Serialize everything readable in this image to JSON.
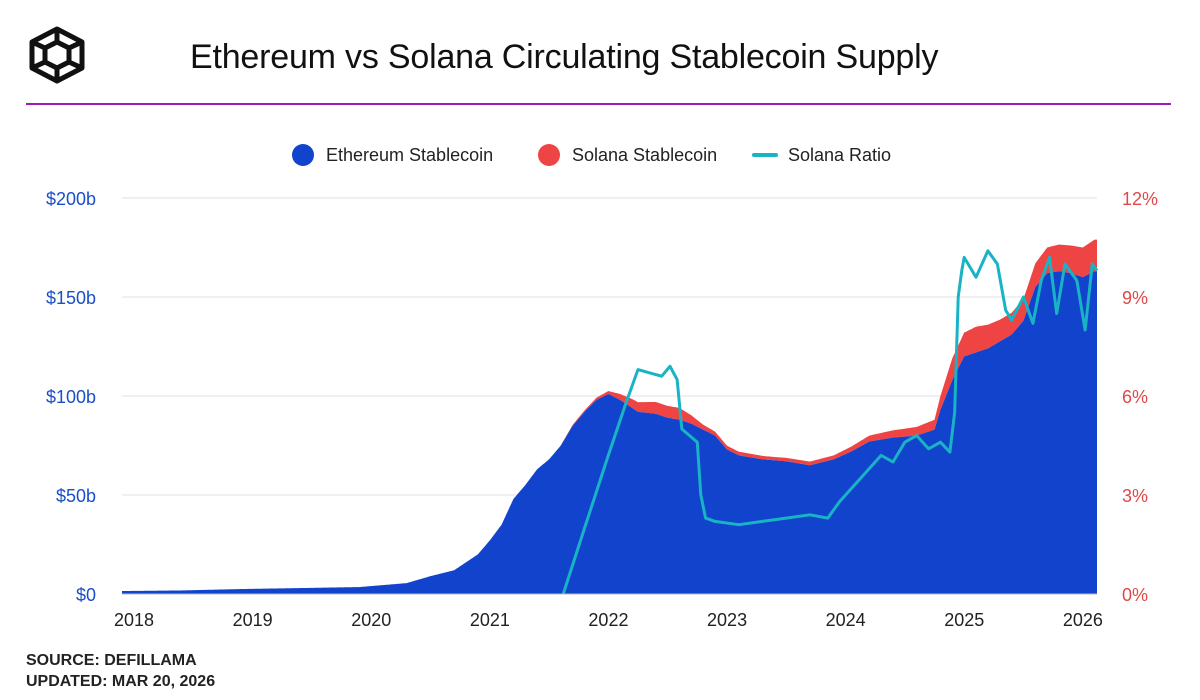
{
  "header": {
    "title": "Ethereum vs Solana Circulating Stablecoin Supply",
    "logo_icon": "cube-outline-icon"
  },
  "footer": {
    "source": "SOURCE: DEFILLAMA",
    "updated": "UPDATED: MAR 20, 2026"
  },
  "colors": {
    "ethereum": "#1143cc",
    "solana": "#ef4444",
    "ratio": "#19b3c6",
    "left_axis": "#1a4fc8",
    "right_axis": "#e04848",
    "divider": "#9b1bb4",
    "grid": "#e6e6e6"
  },
  "chart_data": {
    "type": "area",
    "title": "Ethereum vs Solana Circulating Stablecoin Supply",
    "x_ticks": [
      "2018",
      "2019",
      "2020",
      "2021",
      "2022",
      "2023",
      "2024",
      "2025",
      "2026"
    ],
    "x_range": [
      2018,
      2026.22
    ],
    "left_axis": {
      "ticks": [
        "$200b",
        "$150b",
        "$100b",
        "$50b",
        "$0"
      ],
      "range": [
        0,
        200
      ],
      "unit": "billion USD"
    },
    "right_axis": {
      "ticks": [
        "12%",
        "9%",
        "6%",
        "3%",
        "0%"
      ],
      "range": [
        0,
        12
      ],
      "unit": "percent"
    },
    "grid": true,
    "legend_position": "top-center",
    "legend": [
      {
        "name": "Ethereum Stablecoin",
        "marker": "dot",
        "color": "#1143cc"
      },
      {
        "name": "Solana Stablecoin",
        "marker": "dot",
        "color": "#ef4444"
      },
      {
        "name": "Solana Ratio",
        "marker": "line",
        "color": "#19b3c6"
      }
    ],
    "series": [
      {
        "name": "Ethereum Stablecoin",
        "kind": "area",
        "axis": "left",
        "points": [
          [
            2018.0,
            1.5
          ],
          [
            2018.5,
            1.8
          ],
          [
            2019.0,
            2.5
          ],
          [
            2019.5,
            3.0
          ],
          [
            2020.0,
            3.5
          ],
          [
            2020.2,
            4.5
          ],
          [
            2020.4,
            5.5
          ],
          [
            2020.6,
            9
          ],
          [
            2020.8,
            12
          ],
          [
            2021.0,
            20
          ],
          [
            2021.1,
            27
          ],
          [
            2021.2,
            35
          ],
          [
            2021.3,
            48
          ],
          [
            2021.4,
            55
          ],
          [
            2021.5,
            63
          ],
          [
            2021.6,
            68
          ],
          [
            2021.7,
            75
          ],
          [
            2021.8,
            85
          ],
          [
            2021.9,
            92
          ],
          [
            2022.0,
            98
          ],
          [
            2022.1,
            101
          ],
          [
            2022.2,
            98
          ],
          [
            2022.35,
            92
          ],
          [
            2022.5,
            91
          ],
          [
            2022.6,
            89
          ],
          [
            2022.7,
            88
          ],
          [
            2022.8,
            86
          ],
          [
            2022.9,
            83
          ],
          [
            2023.0,
            80
          ],
          [
            2023.1,
            73
          ],
          [
            2023.2,
            70
          ],
          [
            2023.4,
            68
          ],
          [
            2023.6,
            67
          ],
          [
            2023.8,
            65
          ],
          [
            2024.0,
            68
          ],
          [
            2024.15,
            72
          ],
          [
            2024.3,
            77
          ],
          [
            2024.5,
            79
          ],
          [
            2024.7,
            80
          ],
          [
            2024.85,
            83
          ],
          [
            2024.9,
            93
          ],
          [
            2025.0,
            108
          ],
          [
            2025.1,
            120
          ],
          [
            2025.3,
            124
          ],
          [
            2025.5,
            131
          ],
          [
            2025.6,
            138
          ],
          [
            2025.7,
            155
          ],
          [
            2025.8,
            162
          ],
          [
            2025.9,
            163
          ],
          [
            2026.0,
            162
          ],
          [
            2026.1,
            160
          ],
          [
            2026.2,
            163
          ]
        ]
      },
      {
        "name": "Solana Stablecoin",
        "kind": "stacked-area",
        "axis": "left",
        "points": [
          [
            2021.7,
            0.2
          ],
          [
            2021.9,
            0.8
          ],
          [
            2022.1,
            1.5
          ],
          [
            2022.3,
            4.5
          ],
          [
            2022.5,
            6
          ],
          [
            2022.7,
            6
          ],
          [
            2022.9,
            2.5
          ],
          [
            2023.0,
            2
          ],
          [
            2023.5,
            1.7
          ],
          [
            2024.0,
            2
          ],
          [
            2024.3,
            3
          ],
          [
            2024.6,
            4
          ],
          [
            2024.85,
            5
          ],
          [
            2025.0,
            11
          ],
          [
            2025.2,
            13
          ],
          [
            2025.4,
            11
          ],
          [
            2025.6,
            11
          ],
          [
            2025.8,
            13
          ],
          [
            2026.0,
            14
          ],
          [
            2026.2,
            16
          ]
        ]
      },
      {
        "name": "Solana Ratio",
        "kind": "line",
        "axis": "right",
        "points": [
          [
            2021.72,
            0
          ],
          [
            2021.9,
            2.0
          ],
          [
            2022.1,
            4.2
          ],
          [
            2022.25,
            5.8
          ],
          [
            2022.35,
            6.8
          ],
          [
            2022.45,
            6.7
          ],
          [
            2022.55,
            6.6
          ],
          [
            2022.62,
            6.9
          ],
          [
            2022.68,
            6.5
          ],
          [
            2022.72,
            5.0
          ],
          [
            2022.85,
            4.6
          ],
          [
            2022.88,
            3.0
          ],
          [
            2022.92,
            2.3
          ],
          [
            2023.0,
            2.2
          ],
          [
            2023.2,
            2.1
          ],
          [
            2023.4,
            2.2
          ],
          [
            2023.6,
            2.3
          ],
          [
            2023.8,
            2.4
          ],
          [
            2023.95,
            2.3
          ],
          [
            2024.05,
            2.8
          ],
          [
            2024.15,
            3.2
          ],
          [
            2024.3,
            3.8
          ],
          [
            2024.4,
            4.2
          ],
          [
            2024.5,
            4.0
          ],
          [
            2024.6,
            4.6
          ],
          [
            2024.7,
            4.8
          ],
          [
            2024.8,
            4.4
          ],
          [
            2024.9,
            4.6
          ],
          [
            2024.98,
            4.3
          ],
          [
            2025.02,
            5.5
          ],
          [
            2025.05,
            9.0
          ],
          [
            2025.08,
            9.8
          ],
          [
            2025.1,
            10.2
          ],
          [
            2025.2,
            9.6
          ],
          [
            2025.3,
            10.4
          ],
          [
            2025.38,
            10.0
          ],
          [
            2025.45,
            8.6
          ],
          [
            2025.5,
            8.3
          ],
          [
            2025.6,
            9.0
          ],
          [
            2025.68,
            8.2
          ],
          [
            2025.75,
            9.5
          ],
          [
            2025.82,
            10.2
          ],
          [
            2025.88,
            8.5
          ],
          [
            2025.95,
            10.0
          ],
          [
            2026.05,
            9.5
          ],
          [
            2026.12,
            8.0
          ],
          [
            2026.18,
            10.0
          ],
          [
            2026.22,
            9.8
          ]
        ]
      }
    ]
  }
}
